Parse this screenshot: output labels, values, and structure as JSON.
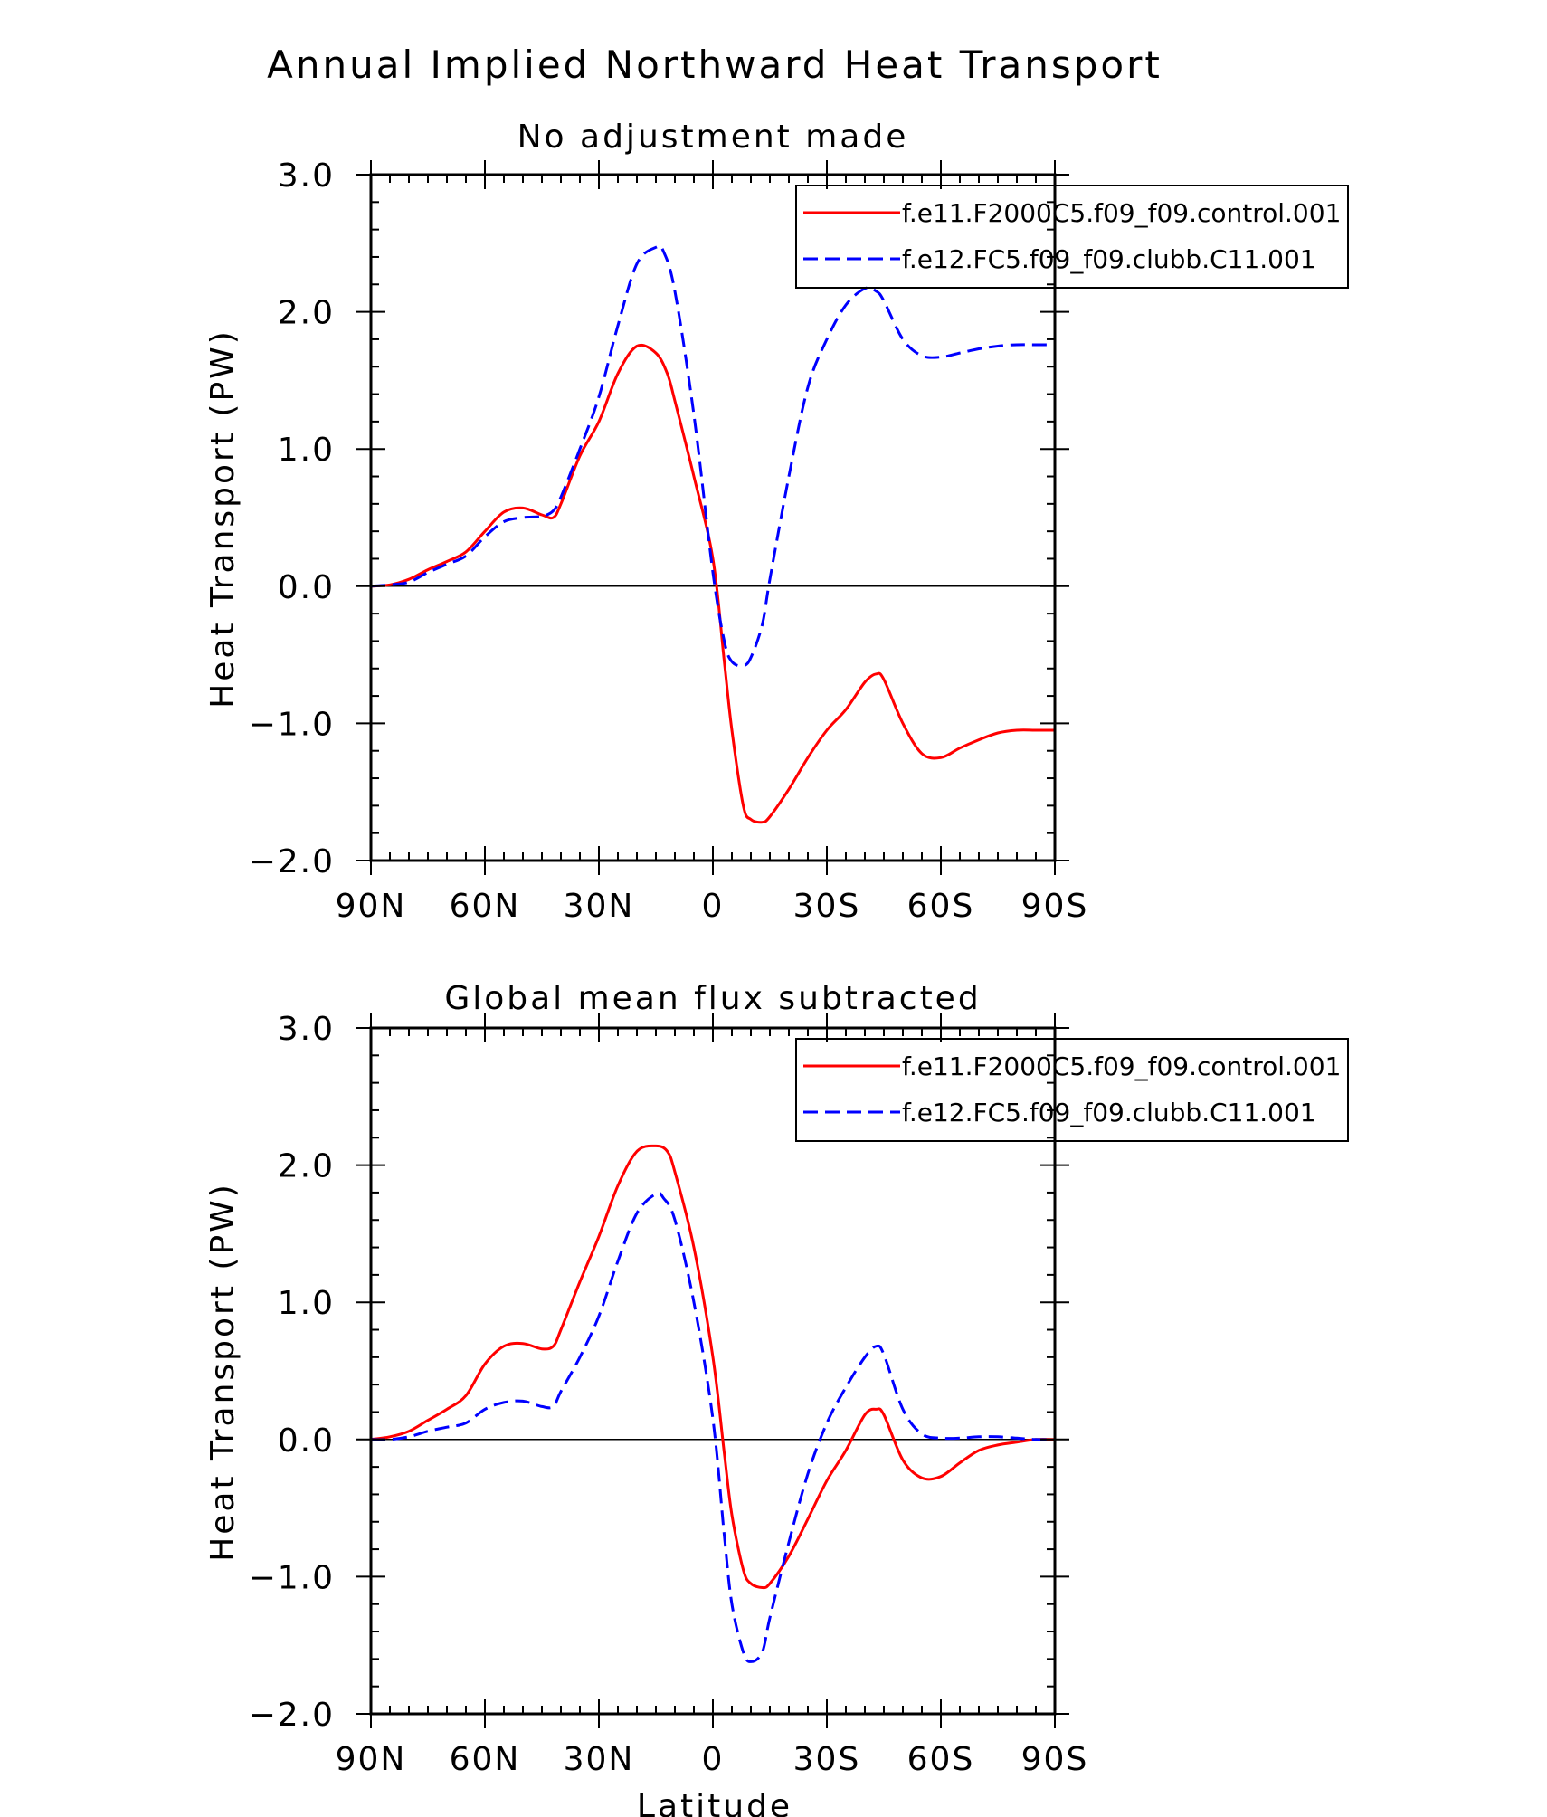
{
  "figure_title": "Annual Implied Northward Heat Transport",
  "colors": {
    "red": "#ff0000",
    "blue": "#0000ff",
    "axis": "#000000"
  },
  "chart_data": [
    {
      "type": "line",
      "title": "No adjustment made",
      "xlabel": "",
      "ylabel": "Heat Transport (PW)",
      "xlim": [
        -90,
        90
      ],
      "ylim": [
        -2.0,
        3.0
      ],
      "x_tick_values": [
        -90,
        -60,
        -30,
        0,
        30,
        60,
        90
      ],
      "x_tick_labels": [
        "90N",
        "60N",
        "30N",
        "0",
        "30S",
        "60S",
        "90S"
      ],
      "y_tick_values": [
        -2.0,
        -1.0,
        0.0,
        1.0,
        2.0,
        3.0
      ],
      "y_tick_labels": [
        "−2.0",
        "−1.0",
        "0.0",
        "1.0",
        "2.0",
        "3.0"
      ],
      "legend_position": "top-right",
      "reference_line": 0.0,
      "series": [
        {
          "name": "f.e11.F2000C5.f09_f09.control.001",
          "color": "#ff0000",
          "dash": "solid",
          "x": [
            -90,
            -85,
            -80,
            -75,
            -70,
            -65,
            -60,
            -55,
            -50,
            -45,
            -42,
            -40,
            -35,
            -30,
            -25,
            -20,
            -15,
            -12,
            -10,
            -5,
            0,
            3,
            5,
            8,
            10,
            13,
            15,
            20,
            25,
            30,
            35,
            40,
            43,
            45,
            50,
            55,
            60,
            65,
            70,
            75,
            80,
            85,
            90
          ],
          "y": [
            0.0,
            0.01,
            0.05,
            0.12,
            0.18,
            0.25,
            0.4,
            0.54,
            0.57,
            0.52,
            0.5,
            0.6,
            0.95,
            1.2,
            1.55,
            1.75,
            1.7,
            1.55,
            1.35,
            0.8,
            0.2,
            -0.55,
            -1.05,
            -1.6,
            -1.7,
            -1.72,
            -1.68,
            -1.48,
            -1.25,
            -1.05,
            -0.9,
            -0.7,
            -0.64,
            -0.68,
            -1.0,
            -1.22,
            -1.25,
            -1.18,
            -1.12,
            -1.07,
            -1.05,
            -1.05,
            -1.05
          ]
        },
        {
          "name": "f.e12.FC5.f09_f09.clubb.C11.001",
          "color": "#0000ff",
          "dash": "dashed",
          "x": [
            -90,
            -85,
            -80,
            -75,
            -70,
            -65,
            -60,
            -55,
            -50,
            -45,
            -42,
            -40,
            -35,
            -30,
            -25,
            -20,
            -15,
            -13,
            -10,
            -5,
            0,
            3,
            5,
            8,
            10,
            13,
            15,
            20,
            25,
            30,
            35,
            40,
            43,
            45,
            50,
            55,
            60,
            65,
            70,
            75,
            80,
            85,
            90
          ],
          "y": [
            0.0,
            0.01,
            0.03,
            0.1,
            0.16,
            0.22,
            0.36,
            0.47,
            0.5,
            0.51,
            0.55,
            0.65,
            1.0,
            1.38,
            1.9,
            2.35,
            2.47,
            2.44,
            2.15,
            1.25,
            0.1,
            -0.4,
            -0.55,
            -0.58,
            -0.52,
            -0.28,
            0.05,
            0.8,
            1.45,
            1.8,
            2.05,
            2.17,
            2.15,
            2.08,
            1.8,
            1.68,
            1.67,
            1.7,
            1.73,
            1.75,
            1.76,
            1.76,
            1.76
          ]
        }
      ]
    },
    {
      "type": "line",
      "title": "Global mean flux subtracted",
      "xlabel": "Latitude",
      "ylabel": "Heat Transport (PW)",
      "xlim": [
        -90,
        90
      ],
      "ylim": [
        -2.0,
        3.0
      ],
      "x_tick_values": [
        -90,
        -60,
        -30,
        0,
        30,
        60,
        90
      ],
      "x_tick_labels": [
        "90N",
        "60N",
        "30N",
        "0",
        "30S",
        "60S",
        "90S"
      ],
      "y_tick_values": [
        -2.0,
        -1.0,
        0.0,
        1.0,
        2.0,
        3.0
      ],
      "y_tick_labels": [
        "−2.0",
        "−1.0",
        "0.0",
        "1.0",
        "2.0",
        "3.0"
      ],
      "legend_position": "top-right",
      "reference_line": 0.0,
      "series": [
        {
          "name": "f.e11.F2000C5.f09_f09.control.001",
          "color": "#ff0000",
          "dash": "solid",
          "x": [
            -90,
            -85,
            -80,
            -75,
            -70,
            -65,
            -60,
            -55,
            -50,
            -45,
            -42,
            -40,
            -35,
            -30,
            -25,
            -20,
            -15,
            -12,
            -10,
            -5,
            0,
            3,
            5,
            8,
            10,
            13,
            15,
            20,
            25,
            30,
            35,
            40,
            43,
            45,
            50,
            55,
            60,
            65,
            70,
            75,
            80,
            85,
            90
          ],
          "y": [
            0.0,
            0.02,
            0.06,
            0.14,
            0.22,
            0.32,
            0.55,
            0.68,
            0.7,
            0.66,
            0.68,
            0.8,
            1.15,
            1.48,
            1.85,
            2.1,
            2.14,
            2.1,
            1.95,
            1.4,
            0.6,
            -0.1,
            -0.55,
            -0.95,
            -1.05,
            -1.08,
            -1.05,
            -0.85,
            -0.58,
            -0.3,
            -0.08,
            0.18,
            0.22,
            0.18,
            -0.15,
            -0.28,
            -0.27,
            -0.17,
            -0.08,
            -0.04,
            -0.02,
            0.0,
            0.0
          ]
        },
        {
          "name": "f.e12.FC5.f09_f09.clubb.C11.001",
          "color": "#0000ff",
          "dash": "dashed",
          "x": [
            -90,
            -85,
            -80,
            -75,
            -70,
            -65,
            -60,
            -55,
            -50,
            -45,
            -42,
            -40,
            -35,
            -30,
            -25,
            -20,
            -15,
            -13,
            -10,
            -5,
            0,
            3,
            5,
            8,
            10,
            13,
            15,
            20,
            25,
            30,
            35,
            40,
            43,
            45,
            50,
            55,
            60,
            65,
            70,
            75,
            80,
            85,
            90
          ],
          "y": [
            0.0,
            0.0,
            0.02,
            0.06,
            0.09,
            0.12,
            0.22,
            0.27,
            0.28,
            0.24,
            0.24,
            0.35,
            0.6,
            0.9,
            1.3,
            1.65,
            1.79,
            1.76,
            1.6,
            1.0,
            0.15,
            -0.7,
            -1.2,
            -1.55,
            -1.62,
            -1.55,
            -1.3,
            -0.75,
            -0.25,
            0.12,
            0.38,
            0.6,
            0.68,
            0.62,
            0.22,
            0.04,
            0.01,
            0.01,
            0.02,
            0.02,
            0.01,
            0.0,
            0.0
          ]
        }
      ]
    }
  ]
}
